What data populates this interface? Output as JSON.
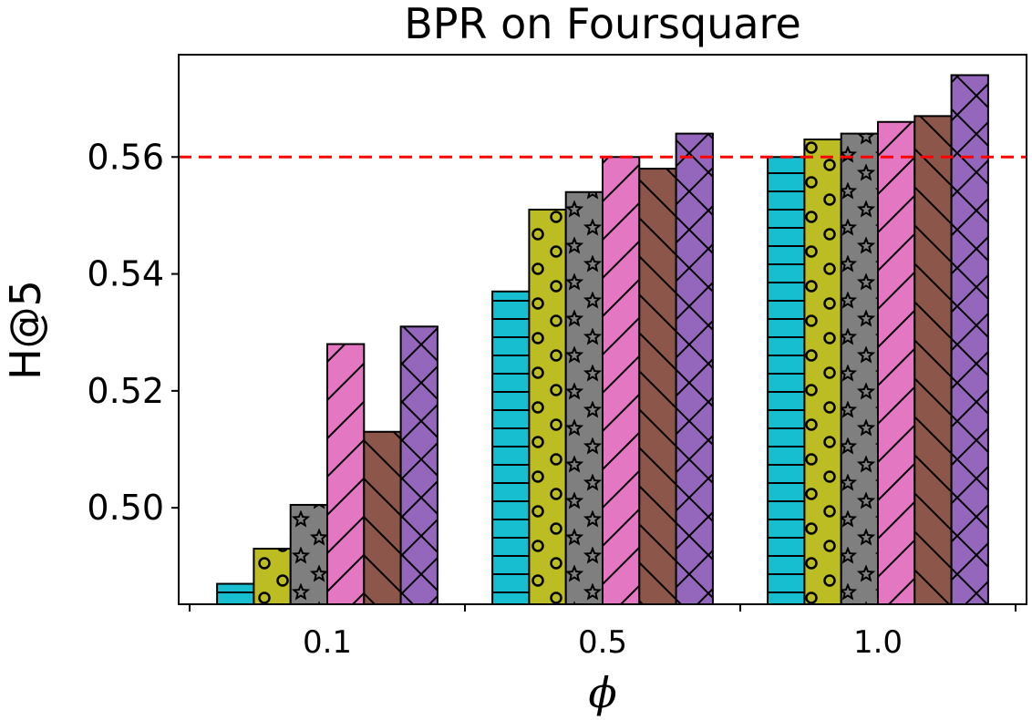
{
  "chart_data": {
    "type": "bar",
    "title": "BPR on Foursquare",
    "xlabel": "ϕ",
    "ylabel": "H@5",
    "categories": [
      "0.1",
      "0.5",
      "1.0"
    ],
    "ylim": [
      0.4835,
      0.5775
    ],
    "yticks": [
      "0.50",
      "0.52",
      "0.54",
      "0.56"
    ],
    "grid": false,
    "legend": "none",
    "reference_line": {
      "value": 0.56,
      "color": "#ff0000",
      "style": "dashed"
    },
    "series": [
      {
        "values": [
          0.487,
          0.537,
          0.56
        ],
        "color": "#17becf",
        "hatch": "horizontal"
      },
      {
        "values": [
          0.493,
          0.551,
          0.563
        ],
        "color": "#bcbd22",
        "hatch": "circles"
      },
      {
        "values": [
          0.5005,
          0.554,
          0.564
        ],
        "color": "#7f7f7f",
        "hatch": "stars"
      },
      {
        "values": [
          0.528,
          0.56,
          0.566
        ],
        "color": "#e377c2",
        "hatch": "forward-diagonal"
      },
      {
        "values": [
          0.513,
          0.558,
          0.567
        ],
        "color": "#8c564b",
        "hatch": "back-diagonal"
      },
      {
        "values": [
          0.531,
          0.564,
          0.574
        ],
        "color": "#9467bd",
        "hatch": "cross"
      }
    ]
  }
}
